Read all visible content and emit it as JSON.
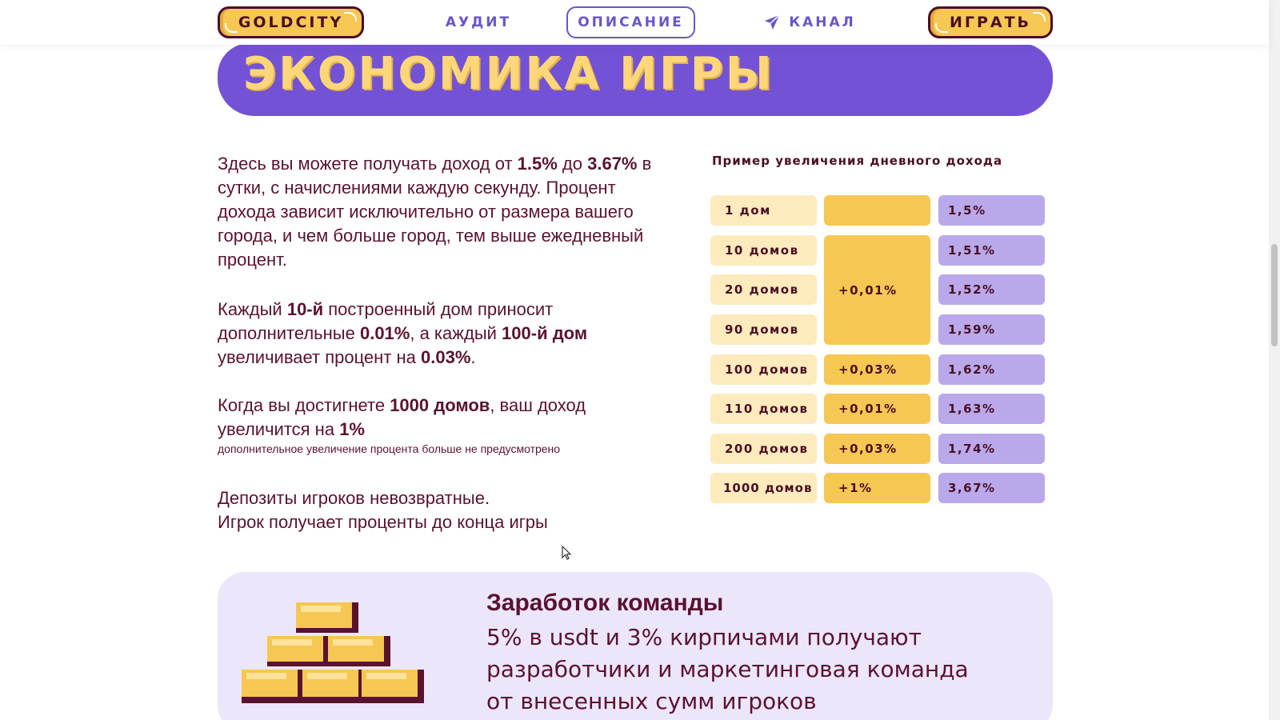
{
  "nav": {
    "logo": "GOLDCITY",
    "audit": "АУДИТ",
    "description": "ОПИСАНИЕ",
    "channel": "КАНАЛ",
    "play": "ИГРАТЬ"
  },
  "section": {
    "title": "ЭКОНОМИКА ИГРЫ"
  },
  "intro": {
    "p1_a": "Здесь вы можете получать доход от ",
    "p1_b": "1.5%",
    "p1_c": " до ",
    "p1_d": "3.67%",
    "p1_e": " в сутки, с начислениями каждую секунду. Процент дохода зависит исключительно от размера вашего города, и чем больше город, тем выше ежедневный процент.",
    "p2_a": "Каждый ",
    "p2_b": "10-й",
    "p2_c": " построенный дом приносит дополнительные ",
    "p2_d": "0.01%",
    "p2_e": ", а каждый ",
    "p2_f": "100-й дом",
    "p2_g": " увеличивает процент на ",
    "p2_h": "0.03%",
    "p2_i": ".",
    "p3_a": "Когда вы достигнете ",
    "p3_b": "1000 домов",
    "p3_c": ", ваш доход увеличится на ",
    "p3_d": "1%",
    "p3_note": "дополнительное увеличение процента больше не предусмотрено",
    "p4_line1": "Депозиты игроков невозвратные.",
    "p4_line2": "Игрок получает проценты до конца игры"
  },
  "income_table": {
    "title": "Пример увеличения дневного дохода",
    "rows": [
      {
        "houses": "1 дом",
        "add": "",
        "pct": "1,5%"
      },
      {
        "houses": "10 домов",
        "add": "",
        "pct": "1,51%"
      },
      {
        "houses": "20 домов",
        "add": "+0,01%",
        "pct": "1,52%"
      },
      {
        "houses": "90 домов",
        "add": "",
        "pct": "1,59%"
      },
      {
        "houses": "100 домов",
        "add": "+0,03%",
        "pct": "1,62%"
      },
      {
        "houses": "110 домов",
        "add": "+0,01%",
        "pct": "1,63%"
      },
      {
        "houses": "200 домов",
        "add": "+0,03%",
        "pct": "1,74%"
      },
      {
        "houses": "1000 домов",
        "add": "+1%",
        "pct": "3,67%"
      }
    ]
  },
  "team": {
    "title": "Заработок команды",
    "line1": "5% в usdt и 3% кирпичами получают",
    "line2": "разработчики и маркетинговая команда",
    "line3": "от внесенных сумм игроков"
  },
  "colors": {
    "accent_purple": "#7452d5",
    "gold": "#f6c752",
    "maroon": "#5a1230",
    "lilac": "#b9a9ea"
  }
}
